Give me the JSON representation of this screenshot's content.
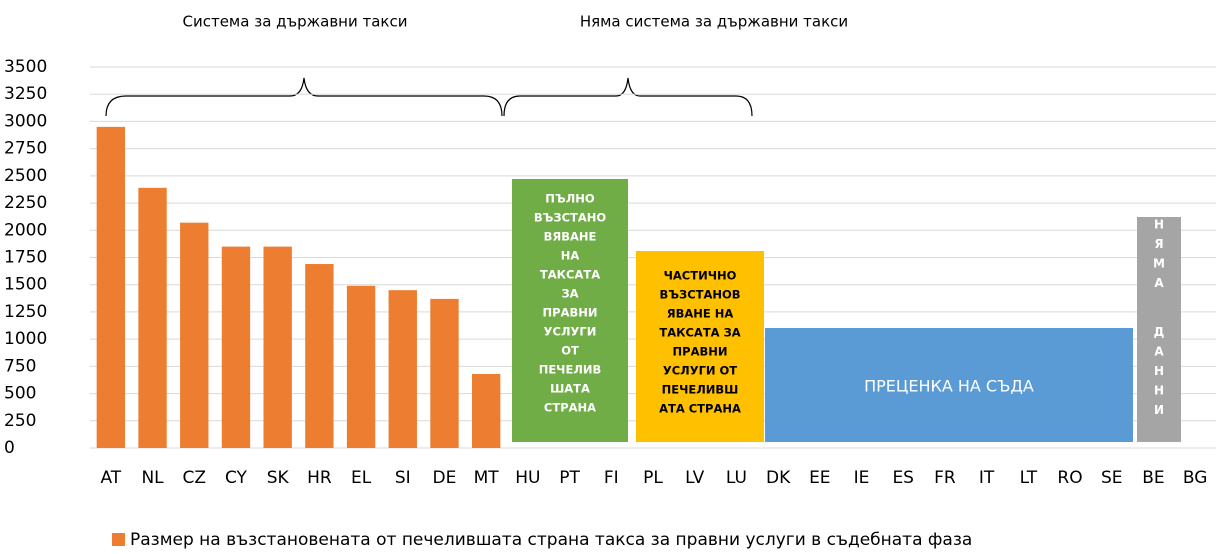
{
  "chart_data": {
    "type": "bar",
    "group_labels": [
      "Система за държавни такси",
      "Няма система за държавни такси"
    ],
    "categories": [
      "AT",
      "NL",
      "CZ",
      "CY",
      "SK",
      "HR",
      "EL",
      "SI",
      "DE",
      "MT",
      "HU",
      "PT",
      "FI",
      "PL",
      "LV",
      "LU",
      "DK",
      "EE",
      "IE",
      "ES",
      "FR",
      "IT",
      "LT",
      "RO",
      "SE",
      "BE",
      "BG"
    ],
    "series": [
      {
        "name": "Размер на възстановената от печелившата страна такса за правни услуги в съдебната фаза",
        "color": "#ed7d31",
        "values": [
          2950,
          2390,
          2070,
          1850,
          1850,
          1690,
          1490,
          1450,
          1370,
          680,
          null,
          null,
          null,
          null,
          null,
          null,
          null,
          null,
          null,
          null,
          null,
          null,
          null,
          null,
          null,
          null,
          null
        ]
      }
    ],
    "ylim": [
      0,
      3500
    ],
    "yticks": [
      0,
      250,
      500,
      750,
      1000,
      1250,
      1500,
      1750,
      2000,
      2250,
      2500,
      2750,
      3000,
      3250,
      3500
    ],
    "grid": true,
    "annotations": [
      {
        "lines": [
          "ПЪЛНО",
          "ВЪЗСТАНО",
          "ВЯВАНЕ",
          "НА",
          "ТАКСАТА",
          "ЗА",
          "ПРАВНИ",
          "УСЛУГИ",
          "ОТ",
          "ПЕЧЕЛИВ",
          "ШАТА",
          "СТРАНА"
        ],
        "color": "#70ad47"
      },
      {
        "lines": [
          "ЧАСТИЧНО",
          "ВЪЗСТАНОВ",
          "ЯВАНЕ НА",
          "ТАКСАТА ЗА",
          "ПРАВНИ",
          "УСЛУГИ ОТ",
          "ПЕЧЕЛИВШ",
          "АТА СТРАНА"
        ],
        "color": "#ffc000"
      },
      {
        "lines": [
          "ПРЕЦЕНКА НА СЪДА"
        ],
        "color": "#5b9bd5"
      },
      {
        "lines": [
          "Н",
          "Я",
          "М",
          "А",
          "Д",
          "А",
          "Н",
          "Н",
          "И"
        ],
        "color": "#a5a5a5"
      }
    ]
  }
}
